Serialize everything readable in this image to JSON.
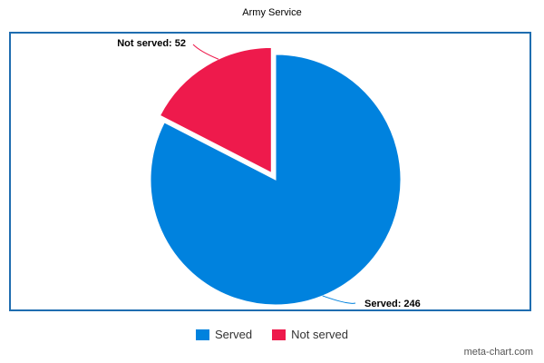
{
  "chart_data": {
    "type": "pie",
    "title": "Army Service",
    "categories": [
      "Served",
      "Not served"
    ],
    "values": [
      246,
      52
    ],
    "colors": [
      "#0082de",
      "#ee1a4c"
    ],
    "data_labels": [
      "Served: 246",
      "Not served: 52"
    ],
    "exploded": "Not served",
    "legend_position": "bottom"
  },
  "legend": {
    "items": [
      {
        "label": "Served",
        "color": "#0082de"
      },
      {
        "label": "Not served",
        "color": "#ee1a4c"
      }
    ]
  },
  "footer": {
    "credit": "meta-chart.com"
  }
}
